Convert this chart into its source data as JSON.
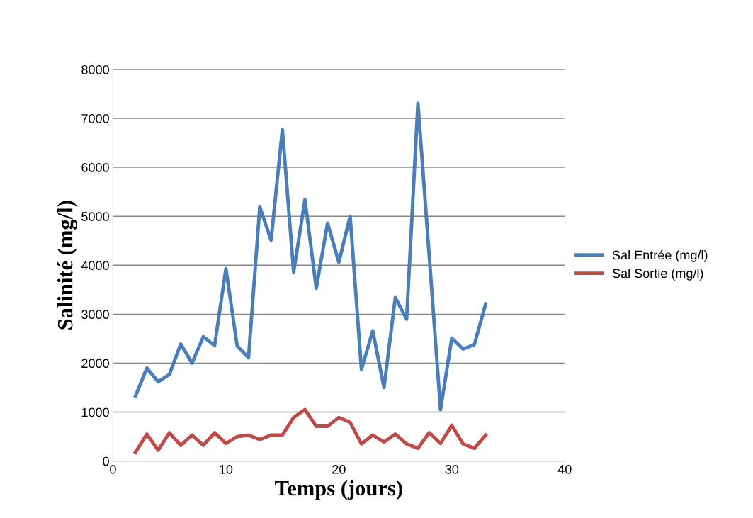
{
  "chart_data": {
    "type": "line",
    "xlabel": "Temps (jours)",
    "ylabel": "Salinité (mg/l)",
    "x": [
      2,
      3,
      4,
      5,
      6,
      7,
      8,
      9,
      10,
      11,
      12,
      13,
      14,
      15,
      16,
      17,
      18,
      19,
      20,
      21,
      22,
      23,
      24,
      25,
      26,
      27,
      28,
      29,
      30,
      31,
      32,
      33
    ],
    "series": [
      {
        "name": "Sal Entrée (mg/l)",
        "color": "#4a7ebb",
        "values": [
          1330,
          1900,
          1620,
          1770,
          2390,
          2000,
          2540,
          2360,
          3930,
          2350,
          2110,
          5190,
          4510,
          6770,
          3860,
          5340,
          3530,
          4860,
          4060,
          5000,
          1870,
          2660,
          1500,
          3340,
          2900,
          7310,
          4200,
          1050,
          2510,
          2290,
          2380,
          3210
        ]
      },
      {
        "name": "Sal Sortie (mg/l)",
        "color": "#be4b48",
        "values": [
          180,
          550,
          220,
          580,
          320,
          530,
          320,
          580,
          360,
          500,
          530,
          440,
          530,
          530,
          890,
          1050,
          710,
          710,
          890,
          790,
          350,
          530,
          390,
          550,
          350,
          260,
          580,
          360,
          730,
          350,
          260,
          530
        ]
      }
    ],
    "xlim": [
      0,
      40
    ],
    "xticks": [
      0,
      10,
      20,
      30,
      40
    ],
    "ylim": [
      0,
      8000
    ],
    "yticks": [
      0,
      1000,
      2000,
      3000,
      4000,
      5000,
      6000,
      7000,
      8000
    ],
    "grid": "y",
    "legend": "right",
    "marker": "none",
    "line_style": "solid"
  }
}
